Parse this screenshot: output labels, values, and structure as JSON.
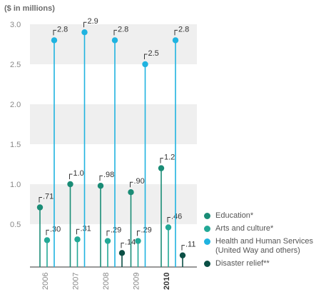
{
  "unit_label": "($ in millions)",
  "colors": {
    "education": "#1a8c76",
    "arts": "#23a896",
    "health": "#1fb3e0",
    "disaster": "#0b4f45",
    "band": "#efefef",
    "axis": "#999999",
    "tick": "#888888"
  },
  "chart_data": {
    "type": "bar",
    "style": "lollipop",
    "ylim": [
      0,
      3.0
    ],
    "yticks": [
      "3.0",
      "2.5",
      "2.0",
      "1.5",
      "1.0",
      "0.5"
    ],
    "ytick_values": [
      3.0,
      2.5,
      2.0,
      1.5,
      1.0,
      0.5
    ],
    "grid": "alternating horizontal bands",
    "legend": "right",
    "categories": [
      "2006",
      "2007",
      "2008",
      "2009",
      "2010"
    ],
    "highlight_category": "2010",
    "series": [
      {
        "key": "education",
        "name": "Education*",
        "values": [
          0.71,
          1.0,
          0.98,
          0.9,
          1.2
        ],
        "labels": [
          ".71",
          "1.0",
          ".98",
          ".90",
          "1.2"
        ]
      },
      {
        "key": "arts",
        "name": "Arts and culture*",
        "values": [
          0.3,
          0.31,
          0.29,
          0.29,
          0.46
        ],
        "labels": [
          ".30",
          ".31",
          ".29",
          ".29",
          ".46"
        ]
      },
      {
        "key": "health",
        "name": "Health and Human Services",
        "name_line2": "(United Way and others)",
        "values": [
          2.8,
          2.9,
          2.8,
          2.5,
          2.8
        ],
        "labels": [
          "2.8",
          "2.9",
          "2.8",
          "2.5",
          "2.8"
        ]
      },
      {
        "key": "disaster",
        "name": "Disaster relief**",
        "values": [
          null,
          null,
          0.14,
          null,
          0.11
        ],
        "labels": [
          null,
          null,
          ".14",
          null,
          ".11"
        ]
      }
    ]
  }
}
